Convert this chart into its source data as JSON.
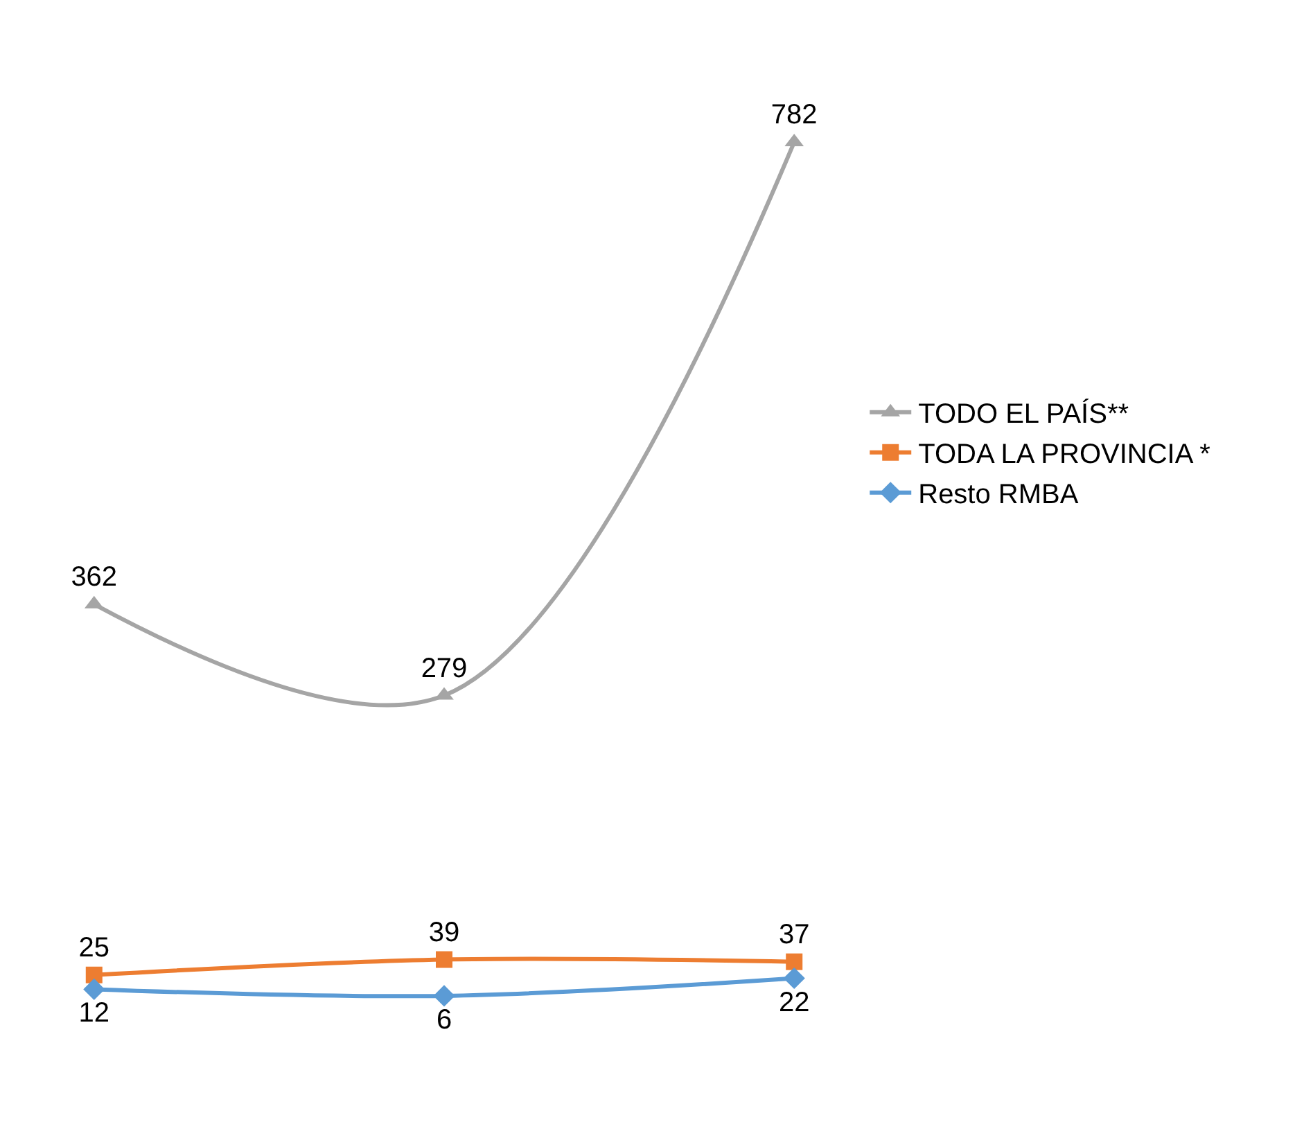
{
  "chart_data": {
    "type": "line",
    "categories": [
      null,
      null,
      null
    ],
    "series": [
      {
        "name": "TODO EL PAÍS**",
        "color": "#a5a5a5",
        "marker": "triangle",
        "values": [
          362,
          279,
          782
        ]
      },
      {
        "name": "TODA LA PROVINCIA *",
        "color": "#ed7d31",
        "marker": "square",
        "values": [
          25,
          39,
          37
        ]
      },
      {
        "name": "Resto RMBA",
        "color": "#5b9bd5",
        "marker": "diamond",
        "values": [
          12,
          6,
          22
        ]
      }
    ],
    "data_labels": true,
    "legend": "right"
  }
}
